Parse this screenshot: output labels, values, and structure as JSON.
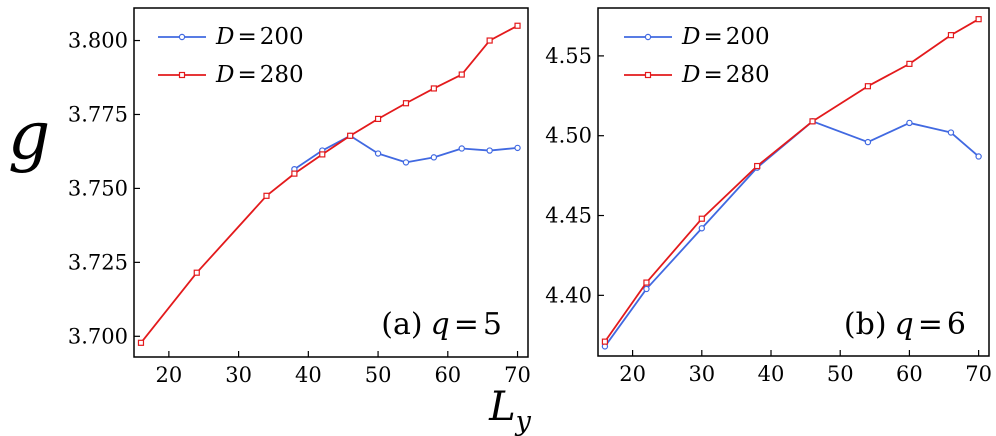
{
  "colors": {
    "series_200": "#4169e1",
    "series_280": "#e31a1c",
    "axis": "#000000"
  },
  "chart_data": [
    {
      "type": "line",
      "annotation": {
        "paren": "(a)",
        "var": "q",
        "eq": "=",
        "val": "5"
      },
      "ylabel": "g",
      "xlabel": {
        "main": "L",
        "sub": "y"
      },
      "xlim": [
        15,
        71.5
      ],
      "ylim": [
        3.693,
        3.811
      ],
      "xticks": [
        "20",
        "30",
        "40",
        "50",
        "60",
        "70"
      ],
      "yticks": [
        "3.700",
        "3.725",
        "3.750",
        "3.775",
        "3.800"
      ],
      "legend_position": "top-left",
      "series": [
        {
          "name": {
            "var": "D",
            "eq": "=",
            "val": "200"
          },
          "color": "#4169e1",
          "marker": "circle",
          "x": [
            38,
            42,
            46,
            50,
            54,
            58,
            62,
            66,
            70
          ],
          "y": [
            3.7565,
            3.7628,
            3.7678,
            3.7618,
            3.7588,
            3.7605,
            3.7635,
            3.7628,
            3.7637
          ]
        },
        {
          "name": {
            "var": "D",
            "eq": "=",
            "val": "280"
          },
          "color": "#e31a1c",
          "marker": "square",
          "x": [
            16,
            24,
            34,
            38,
            42,
            46,
            50,
            54,
            58,
            62,
            66,
            70
          ],
          "y": [
            3.6978,
            3.7215,
            3.7475,
            3.755,
            3.7615,
            3.7678,
            3.7735,
            3.7788,
            3.7838,
            3.7885,
            3.8,
            3.805
          ]
        }
      ]
    },
    {
      "type": "line",
      "annotation": {
        "paren": "(b)",
        "var": "q",
        "eq": "=",
        "val": "6"
      },
      "xlim": [
        15,
        71.5
      ],
      "ylim": [
        4.362,
        4.58
      ],
      "xticks": [
        "20",
        "30",
        "40",
        "50",
        "60",
        "70"
      ],
      "yticks": [
        "4.40",
        "4.45",
        "4.50",
        "4.55"
      ],
      "legend_position": "top-left",
      "series": [
        {
          "name": {
            "var": "D",
            "eq": "=",
            "val": "200"
          },
          "color": "#4169e1",
          "marker": "circle",
          "x": [
            16,
            22,
            30,
            38,
            46,
            54,
            60,
            66,
            70
          ],
          "y": [
            4.368,
            4.404,
            4.442,
            4.48,
            4.509,
            4.496,
            4.508,
            4.502,
            4.487
          ]
        },
        {
          "name": {
            "var": "D",
            "eq": "=",
            "val": "280"
          },
          "color": "#e31a1c",
          "marker": "square",
          "x": [
            16,
            22,
            30,
            38,
            46,
            54,
            60,
            66,
            70
          ],
          "y": [
            4.371,
            4.408,
            4.448,
            4.481,
            4.509,
            4.531,
            4.545,
            4.563,
            4.573
          ]
        }
      ]
    }
  ]
}
